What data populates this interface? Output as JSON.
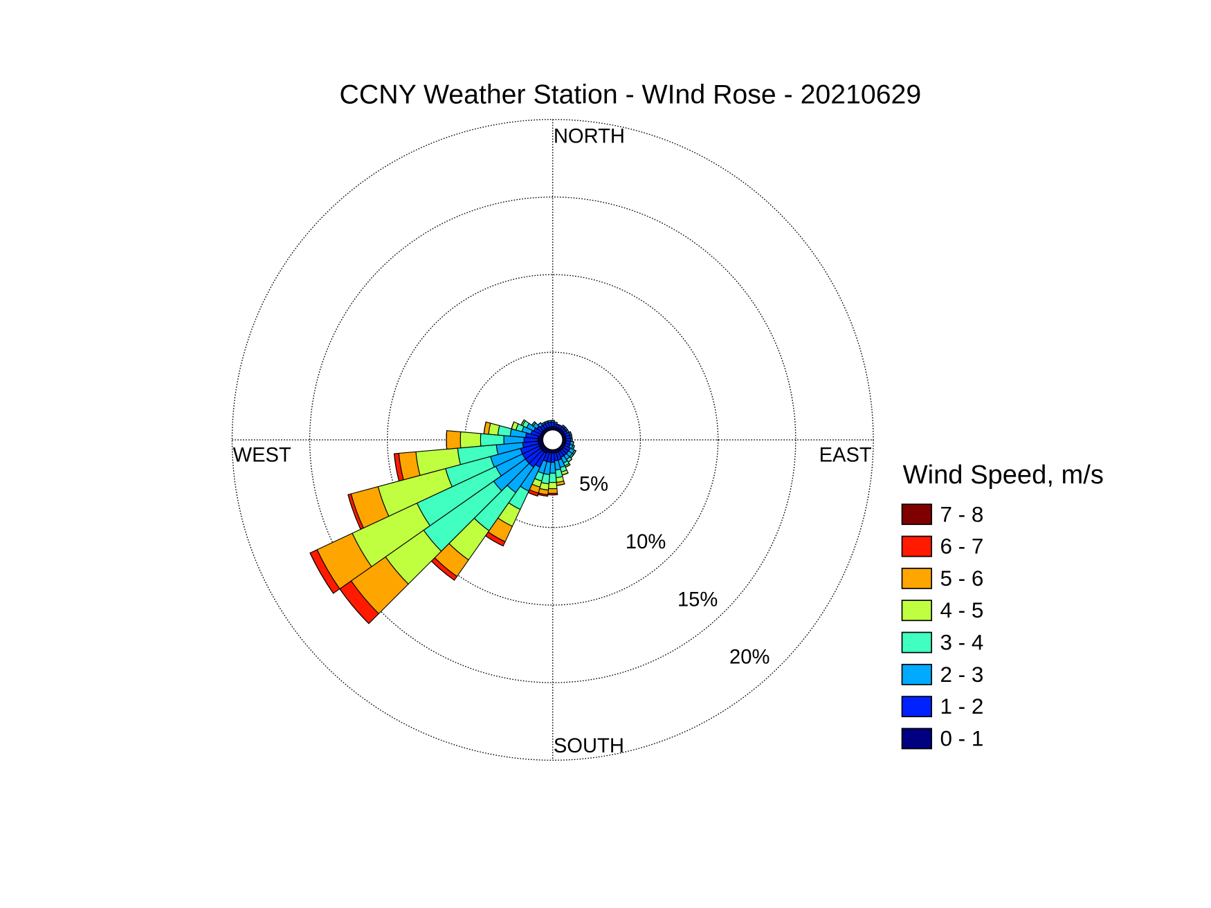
{
  "chart_data": {
    "type": "windrose",
    "title": "CCNY Weather Station - WInd Rose - 20210629",
    "legend_title": "Wind Speed, m/s",
    "direction_labels": {
      "north": "NORTH",
      "east": "EAST",
      "south": "SOUTH",
      "west": "WEST"
    },
    "theta": [
      0,
      10,
      20,
      30,
      40,
      50,
      60,
      70,
      80,
      90,
      100,
      110,
      120,
      130,
      140,
      150,
      160,
      170,
      180,
      190,
      200,
      210,
      220,
      230,
      240,
      250,
      260,
      270,
      280,
      290,
      300,
      310,
      320,
      330,
      340,
      350
    ],
    "rlim": [
      0,
      20
    ],
    "rticks": [
      {
        "value": 5,
        "label": "5%"
      },
      {
        "value": 10,
        "label": "10%"
      },
      {
        "value": 15,
        "label": "15%"
      },
      {
        "value": 20,
        "label": "20%"
      }
    ],
    "grid": true,
    "series": [
      {
        "name": "0 - 1",
        "color": "#000080",
        "values": [
          0.2,
          0.2,
          0.2,
          0.2,
          0.2,
          0.2,
          0.2,
          0.2,
          0.2,
          0.2,
          0.2,
          0.2,
          0.2,
          0.2,
          0.2,
          0.2,
          0.2,
          0.2,
          0.2,
          0.2,
          0.2,
          0.3,
          0.3,
          0.3,
          0.3,
          0.3,
          0.3,
          0.3,
          0.3,
          0.2,
          0.2,
          0.2,
          0.2,
          0.2,
          0.2,
          0.2
        ]
      },
      {
        "name": "1 - 2",
        "color": "#0022ff",
        "values": [
          0.3,
          0.2,
          0.2,
          0.2,
          0.2,
          0.2,
          0.2,
          0.3,
          0.3,
          0.3,
          0.3,
          0.3,
          0.4,
          0.4,
          0.4,
          0.4,
          0.5,
          0.5,
          0.6,
          0.6,
          0.6,
          1.0,
          1.2,
          1.2,
          1.2,
          1.2,
          1.0,
          0.9,
          0.8,
          0.6,
          0.5,
          0.4,
          0.3,
          0.3,
          0.3,
          0.3
        ]
      },
      {
        "name": "2 - 3",
        "color": "#00aaff",
        "values": [
          0.1,
          0.1,
          0,
          0,
          0.1,
          0.1,
          0.1,
          0.1,
          0.1,
          0.1,
          0.2,
          0.2,
          0.3,
          0.3,
          0.3,
          0.4,
          0.5,
          0.6,
          0.7,
          0.8,
          0.8,
          1.7,
          2.0,
          2.5,
          1.9,
          2.0,
          1.7,
          1.3,
          1.0,
          0.6,
          0.5,
          0.3,
          0.2,
          0.1,
          0.1,
          0.1
        ]
      },
      {
        "name": "3 - 4",
        "color": "#40ffc0",
        "values": [
          0,
          0,
          0,
          0,
          0,
          0,
          0,
          0,
          0,
          0,
          0,
          0.1,
          0.1,
          0.1,
          0.2,
          0.2,
          0.3,
          0.5,
          0.6,
          0.6,
          0.5,
          1.3,
          3.0,
          5.5,
          5.6,
          3.0,
          2.5,
          1.5,
          0.8,
          0.4,
          0.3,
          0.1,
          0,
          0,
          0,
          0
        ]
      },
      {
        "name": "4 - 5",
        "color": "#c0ff40",
        "values": [
          0,
          0,
          0,
          0,
          0,
          0,
          0,
          0,
          0,
          0,
          0,
          0,
          0,
          0,
          0,
          0.1,
          0.2,
          0.3,
          0.4,
          0.4,
          0.4,
          1.2,
          2.3,
          3.0,
          4.6,
          4.5,
          2.7,
          1.3,
          0.6,
          0.3,
          0.1,
          0,
          0,
          0,
          0,
          0
        ]
      },
      {
        "name": "5 - 6",
        "color": "#ffa500",
        "values": [
          0,
          0,
          0,
          0,
          0,
          0,
          0,
          0,
          0,
          0,
          0,
          0,
          0,
          0,
          0,
          0,
          0,
          0.2,
          0.3,
          0.3,
          0.4,
          1.1,
          1.3,
          2.7,
          2.5,
          1.8,
          1.1,
          0.9,
          0.3,
          0,
          0,
          0,
          0,
          0,
          0,
          0
        ]
      },
      {
        "name": "6 - 7",
        "color": "#ff1a00",
        "values": [
          0,
          0,
          0,
          0,
          0,
          0,
          0,
          0,
          0,
          0,
          0,
          0,
          0,
          0,
          0,
          0,
          0,
          0,
          0.1,
          0.1,
          0.2,
          0.3,
          0.3,
          0.9,
          0.5,
          0.2,
          0.3,
          0,
          0,
          0,
          0,
          0,
          0,
          0,
          0,
          0
        ]
      },
      {
        "name": "7 - 8",
        "color": "#800000",
        "values": [
          0,
          0,
          0,
          0,
          0,
          0,
          0,
          0,
          0,
          0,
          0,
          0,
          0,
          0,
          0,
          0,
          0,
          0,
          0,
          0,
          0,
          0,
          0,
          0,
          0,
          0,
          0,
          0,
          0,
          0,
          0,
          0,
          0,
          0,
          0,
          0
        ]
      }
    ]
  }
}
